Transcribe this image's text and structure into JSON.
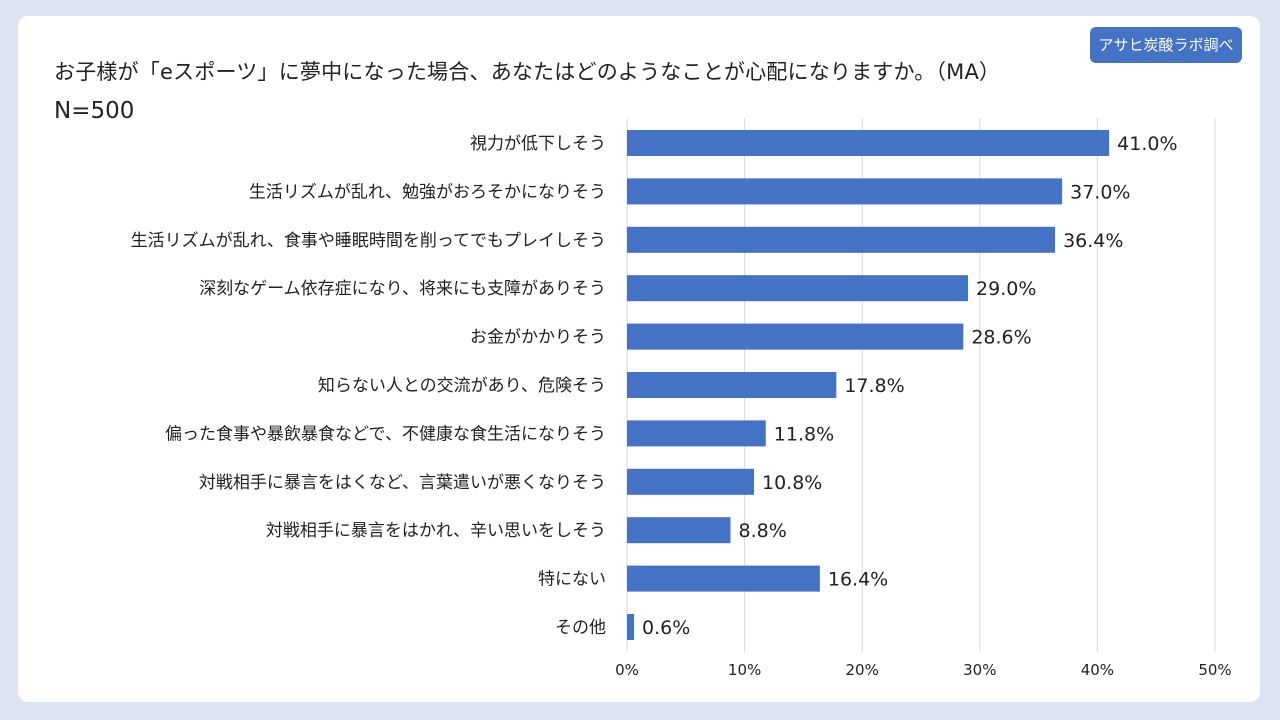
{
  "header": {
    "title": "お子様が「eスポーツ」に夢中になった場合、あなたはどのようなことが心配になりますか。（MA）",
    "sample": "N=500",
    "source": "アサヒ炭酸ラボ調べ"
  },
  "colors": {
    "bar": "#4472c4",
    "grid": "#d9d9d9",
    "background": "#dce4f3"
  },
  "chart_data": {
    "type": "bar",
    "orientation": "horizontal",
    "title": "お子様が「eスポーツ」に夢中になった場合、あなたはどのようなことが心配になりますか。（MA）",
    "categories": [
      "視力が低下しそう",
      "生活リズムが乱れ、勉強がおろそかになりそう",
      "生活リズムが乱れ、食事や睡眠時間を削ってでもプレイしそう",
      "深刻なゲーム依存症になり、将来にも支障がありそう",
      "お金がかかりそう",
      "知らない人との交流があり、危険そう",
      "偏った食事や暴飲暴食などで、不健康な食生活になりそう",
      "対戦相手に暴言をはくなど、言葉遣いが悪くなりそう",
      "対戦相手に暴言をはかれ、辛い思いをしそう",
      "特にない",
      "その他"
    ],
    "values": [
      41.0,
      37.0,
      36.4,
      29.0,
      28.6,
      17.8,
      11.8,
      10.8,
      8.8,
      16.4,
      0.6
    ],
    "value_labels": [
      "41.0%",
      "37.0%",
      "36.4%",
      "29.0%",
      "28.6%",
      "17.8%",
      "11.8%",
      "10.8%",
      "8.8%",
      "16.4%",
      "0.6%"
    ],
    "xlim": [
      0,
      50
    ],
    "xticks": [
      0,
      10,
      20,
      30,
      40,
      50
    ],
    "xtick_labels": [
      "0%",
      "10%",
      "20%",
      "30%",
      "40%",
      "50%"
    ],
    "grid": true,
    "legend": "none"
  }
}
